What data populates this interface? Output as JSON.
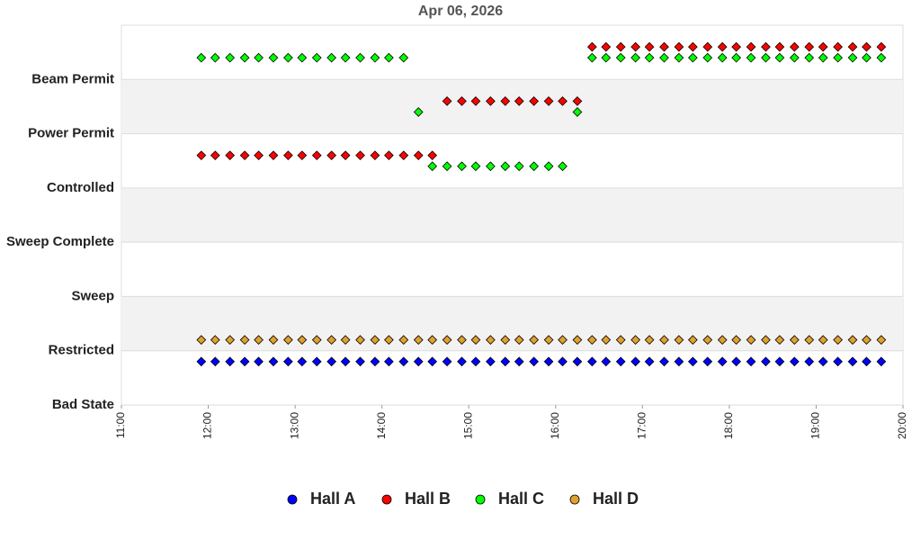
{
  "chart_data": {
    "type": "scatter",
    "title": "Apr 06, 2026",
    "x": [
      11.92,
      12.08,
      12.25,
      12.42,
      12.58,
      12.75,
      12.92,
      13.08,
      13.25,
      13.42,
      13.58,
      13.75,
      13.92,
      14.08,
      14.25,
      14.42,
      14.58,
      14.75,
      14.92,
      15.08,
      15.25,
      15.42,
      15.58,
      15.75,
      15.92,
      16.08,
      16.25,
      16.42,
      16.58,
      16.75,
      16.92,
      17.08,
      17.25,
      17.42,
      17.58,
      17.75,
      17.92,
      18.08,
      18.25,
      18.42,
      18.58,
      18.75,
      18.92,
      19.08,
      19.25,
      19.42,
      19.58,
      19.75
    ],
    "series": [
      {
        "name": "Hall A",
        "color": "#0000ff",
        "values": [
          0.8,
          0.8,
          0.8,
          0.8,
          0.8,
          0.8,
          0.8,
          0.8,
          0.8,
          0.8,
          0.8,
          0.8,
          0.8,
          0.8,
          0.8,
          0.8,
          0.8,
          0.8,
          0.8,
          0.8,
          0.8,
          0.8,
          0.8,
          0.8,
          0.8,
          0.8,
          0.8,
          0.8,
          0.8,
          0.8,
          0.8,
          0.8,
          0.8,
          0.8,
          0.8,
          0.8,
          0.8,
          0.8,
          0.8,
          0.8,
          0.8,
          0.8,
          0.8,
          0.8,
          0.8,
          0.8,
          0.8,
          0.8
        ]
      },
      {
        "name": "Hall B",
        "color": "#ff0000",
        "values": [
          4.6,
          4.6,
          4.6,
          4.6,
          4.6,
          4.6,
          4.6,
          4.6,
          4.6,
          4.6,
          4.6,
          4.6,
          4.6,
          4.6,
          4.6,
          4.6,
          4.6,
          5.6,
          5.6,
          5.6,
          5.6,
          5.6,
          5.6,
          5.6,
          5.6,
          5.6,
          5.6,
          6.6,
          6.6,
          6.6,
          6.6,
          6.6,
          6.6,
          6.6,
          6.6,
          6.6,
          6.6,
          6.6,
          6.6,
          6.6,
          6.6,
          6.6,
          6.6,
          6.6,
          6.6,
          6.6,
          6.6,
          6.6
        ]
      },
      {
        "name": "Hall C",
        "color": "#00ff00",
        "values": [
          6.4,
          6.4,
          6.4,
          6.4,
          6.4,
          6.4,
          6.4,
          6.4,
          6.4,
          6.4,
          6.4,
          6.4,
          6.4,
          6.4,
          6.4,
          5.4,
          4.4,
          4.4,
          4.4,
          4.4,
          4.4,
          4.4,
          4.4,
          4.4,
          4.4,
          4.4,
          5.4,
          6.4,
          6.4,
          6.4,
          6.4,
          6.4,
          6.4,
          6.4,
          6.4,
          6.4,
          6.4,
          6.4,
          6.4,
          6.4,
          6.4,
          6.4,
          6.4,
          6.4,
          6.4,
          6.4,
          6.4,
          6.4
        ]
      },
      {
        "name": "Hall D",
        "color": "#e0a030",
        "values": [
          1.2,
          1.2,
          1.2,
          1.2,
          1.2,
          1.2,
          1.2,
          1.2,
          1.2,
          1.2,
          1.2,
          1.2,
          1.2,
          1.2,
          1.2,
          1.2,
          1.2,
          1.2,
          1.2,
          1.2,
          1.2,
          1.2,
          1.2,
          1.2,
          1.2,
          1.2,
          1.2,
          1.2,
          1.2,
          1.2,
          1.2,
          1.2,
          1.2,
          1.2,
          1.2,
          1.2,
          1.2,
          1.2,
          1.2,
          1.2,
          1.2,
          1.2,
          1.2,
          1.2,
          1.2,
          1.2,
          1.2,
          1.2
        ]
      }
    ],
    "xlim": [
      11,
      20
    ],
    "xticks": [
      {
        "value": 11,
        "label": "11:00"
      },
      {
        "value": 12,
        "label": "12:00"
      },
      {
        "value": 13,
        "label": "13:00"
      },
      {
        "value": 14,
        "label": "14:00"
      },
      {
        "value": 15,
        "label": "15:00"
      },
      {
        "value": 16,
        "label": "16:00"
      },
      {
        "value": 17,
        "label": "17:00"
      },
      {
        "value": 18,
        "label": "18:00"
      },
      {
        "value": 19,
        "label": "19:00"
      },
      {
        "value": 20,
        "label": "20:00"
      }
    ],
    "ylim": [
      0,
      7
    ],
    "yticks": [
      {
        "value": 0,
        "label": "Bad State"
      },
      {
        "value": 1,
        "label": "Restricted"
      },
      {
        "value": 2,
        "label": "Sweep"
      },
      {
        "value": 3,
        "label": "Sweep Complete"
      },
      {
        "value": 4,
        "label": "Controlled"
      },
      {
        "value": 5,
        "label": "Power Permit"
      },
      {
        "value": 6,
        "label": "Beam Permit"
      }
    ],
    "legend": "bottom"
  }
}
